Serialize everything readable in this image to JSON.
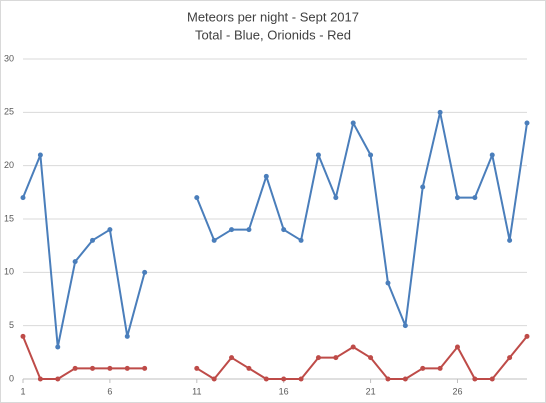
{
  "chart_data": {
    "type": "line",
    "title": "Meteors per night - Sept 2017",
    "subtitle": "Total - Blue, Orionids - Red",
    "x": [
      1,
      2,
      3,
      4,
      5,
      6,
      7,
      8,
      9,
      10,
      11,
      12,
      13,
      14,
      15,
      16,
      17,
      18,
      19,
      20,
      21,
      22,
      23,
      24,
      25,
      26,
      27,
      28,
      29,
      30
    ],
    "xlim": [
      1,
      30
    ],
    "xticks": [
      1,
      6,
      11,
      16,
      21,
      26
    ],
    "ylim": [
      0,
      30
    ],
    "yticks": [
      0,
      5,
      10,
      15,
      20,
      25,
      30
    ],
    "grid": true,
    "series": [
      {
        "name": "Total",
        "color": "#4a7ebb",
        "values": [
          17,
          21,
          3,
          11,
          13,
          14,
          4,
          10,
          null,
          null,
          17,
          13,
          14,
          14,
          19,
          14,
          13,
          21,
          17,
          24,
          21,
          9,
          5,
          18,
          25,
          17,
          17,
          21,
          13,
          24
        ]
      },
      {
        "name": "Orionids",
        "color": "#be4b48",
        "values": [
          4,
          0,
          0,
          1,
          1,
          1,
          1,
          1,
          null,
          null,
          1,
          0,
          2,
          1,
          0,
          0,
          0,
          2,
          2,
          3,
          2,
          0,
          0,
          1,
          1,
          3,
          0,
          0,
          2,
          4
        ]
      }
    ]
  }
}
